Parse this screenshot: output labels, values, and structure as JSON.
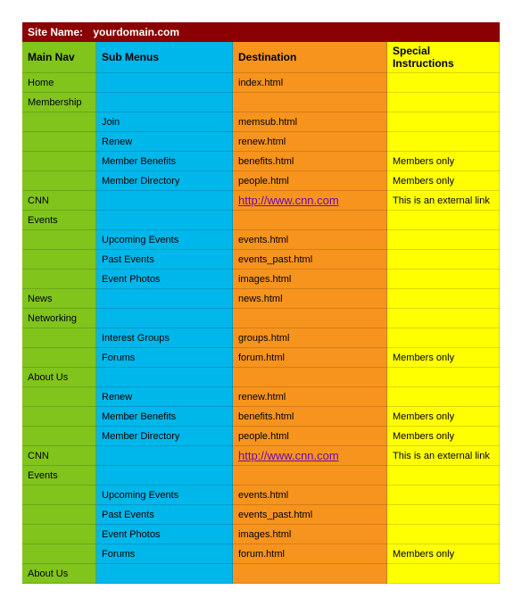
{
  "siteHeader": {
    "label": "Site Name:",
    "value": "yourdomain.com"
  },
  "colors": {
    "headerBg": "#8b0000",
    "mainNav": "#80c41c",
    "subMenu": "#00b7eb",
    "dest": "#f7941d",
    "special": "#ffff00",
    "linkColor": "#6a0dad"
  },
  "columns": [
    {
      "label": "Main Nav",
      "bg": "#80c41c"
    },
    {
      "label": "Sub Menus",
      "bg": "#00b7eb"
    },
    {
      "label": "Destination",
      "bg": "#f7941d"
    },
    {
      "label": "Special Instructions",
      "bg": "#ffff00"
    }
  ],
  "rows": [
    {
      "main": "Home",
      "sub": "",
      "dest": "index.html",
      "special": ""
    },
    {
      "main": "Membership",
      "sub": "",
      "dest": "",
      "special": ""
    },
    {
      "main": "",
      "sub": "Join",
      "dest": "memsub.html",
      "special": ""
    },
    {
      "main": "",
      "sub": "Renew",
      "dest": "renew.html",
      "special": ""
    },
    {
      "main": "",
      "sub": "Member Benefits",
      "dest": "benefits.html",
      "special": "Members only"
    },
    {
      "main": "",
      "sub": "Member Directory",
      "dest": "people.html",
      "special": "Members only"
    },
    {
      "main": "CNN",
      "sub": "",
      "dest": "http://www.cnn.com",
      "special": "This is an external link",
      "isLink": true
    },
    {
      "main": "Events",
      "sub": "",
      "dest": "",
      "special": ""
    },
    {
      "main": "",
      "sub": "Upcoming Events",
      "dest": "events.html",
      "special": ""
    },
    {
      "main": "",
      "sub": "Past Events",
      "dest": "events_past.html",
      "special": ""
    },
    {
      "main": "",
      "sub": "Event Photos",
      "dest": "images.html",
      "special": ""
    },
    {
      "main": "News",
      "sub": "",
      "dest": "news.html",
      "special": ""
    },
    {
      "main": "Networking",
      "sub": "",
      "dest": "",
      "special": ""
    },
    {
      "main": "",
      "sub": "Interest Groups",
      "dest": "groups.html",
      "special": ""
    },
    {
      "main": "",
      "sub": "Forums",
      "dest": "forum.html",
      "special": "Members only"
    },
    {
      "main": "About Us",
      "sub": "",
      "dest": "",
      "special": ""
    },
    {
      "main": "",
      "sub": "Renew",
      "dest": "renew.html",
      "special": ""
    },
    {
      "main": "",
      "sub": "Member Benefits",
      "dest": "benefits.html",
      "special": "Members only"
    },
    {
      "main": "",
      "sub": "Member Directory",
      "dest": "people.html",
      "special": "Members only"
    },
    {
      "main": "CNN",
      "sub": "",
      "dest": "http://www.cnn.com",
      "special": "This is an external link",
      "isLink": true
    },
    {
      "main": "Events",
      "sub": "",
      "dest": "",
      "special": ""
    },
    {
      "main": "",
      "sub": "Upcoming Events",
      "dest": "events.html",
      "special": ""
    },
    {
      "main": "",
      "sub": "Past Events",
      "dest": "events_past.html",
      "special": ""
    },
    {
      "main": "",
      "sub": "Event Photos",
      "dest": "images.html",
      "special": ""
    },
    {
      "main": "",
      "sub": "Forums",
      "dest": "forum.html",
      "special": "Members only"
    },
    {
      "main": "About Us",
      "sub": "",
      "dest": "",
      "special": ""
    }
  ]
}
